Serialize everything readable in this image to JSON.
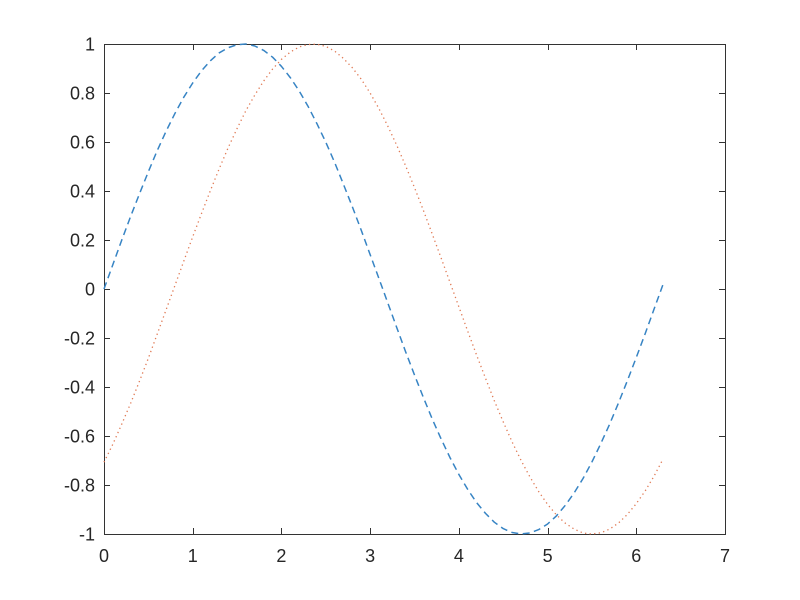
{
  "figure": {
    "background": "#ffffff"
  },
  "chart_data": {
    "type": "line",
    "title": "",
    "xlabel": "",
    "ylabel": "",
    "xlim": [
      0,
      7
    ],
    "ylim": [
      -1,
      1
    ],
    "grid": false,
    "box": true,
    "tick_direction": "in",
    "legend": null,
    "axis_color": "#333333",
    "tick_label_color": "#262626",
    "xticks": {
      "values": [
        0,
        1,
        2,
        3,
        4,
        5,
        6,
        7
      ],
      "labels": [
        "0",
        "1",
        "2",
        "3",
        "4",
        "5",
        "6",
        "7"
      ]
    },
    "yticks": {
      "values": [
        -1,
        -0.8,
        -0.6,
        -0.4,
        -0.2,
        0,
        0.2,
        0.4,
        0.6,
        0.8,
        1
      ],
      "labels": [
        "-1",
        "-0.8",
        "-0.6",
        "-0.4",
        "-0.2",
        "0",
        "0.2",
        "0.4",
        "0.6",
        "0.8",
        "1"
      ]
    },
    "x": [
      0,
      0.1,
      0.2,
      0.3,
      0.4,
      0.5,
      0.6,
      0.7,
      0.8,
      0.9,
      1,
      1.1,
      1.2,
      1.3,
      1.4,
      1.5,
      1.6,
      1.7,
      1.8,
      1.9,
      2,
      2.1,
      2.2,
      2.3,
      2.4,
      2.5,
      2.6,
      2.7,
      2.8,
      2.9,
      3,
      3.1,
      3.2,
      3.3,
      3.4,
      3.5,
      3.6,
      3.7,
      3.8,
      3.9,
      4,
      4.1,
      4.2,
      4.3,
      4.4,
      4.5,
      4.6,
      4.7,
      4.8,
      4.9,
      5,
      5.1,
      5.2,
      5.3,
      5.4,
      5.5,
      5.6,
      5.7,
      5.8,
      5.9,
      6,
      6.1,
      6.2,
      6.3
    ],
    "series": [
      {
        "name": "blue-dashed-sine",
        "line_style": "dashed",
        "color": "#3784C4",
        "values": [
          0,
          0.1,
          0.199,
          0.296,
          0.389,
          0.479,
          0.565,
          0.644,
          0.717,
          0.783,
          0.841,
          0.891,
          0.932,
          0.964,
          0.985,
          0.997,
          1,
          0.992,
          0.974,
          0.946,
          0.909,
          0.863,
          0.808,
          0.746,
          0.675,
          0.599,
          0.516,
          0.427,
          0.335,
          0.239,
          0.141,
          0.042,
          -0.058,
          -0.158,
          -0.256,
          -0.351,
          -0.443,
          -0.53,
          -0.612,
          -0.688,
          -0.757,
          -0.818,
          -0.872,
          -0.916,
          -0.952,
          -0.978,
          -0.994,
          -1,
          -0.996,
          -0.982,
          -0.959,
          -0.926,
          -0.883,
          -0.832,
          -0.773,
          -0.706,
          -0.631,
          -0.551,
          -0.465,
          -0.374,
          -0.279,
          -0.182,
          -0.083,
          0.017
        ]
      },
      {
        "name": "red-dotted-shifted-sine",
        "line_style": "dotted",
        "color": "#E07A55",
        "values": [
          -0.707,
          -0.633,
          -0.552,
          -0.467,
          -0.376,
          -0.282,
          -0.184,
          -0.085,
          0.015,
          0.114,
          0.213,
          0.309,
          0.403,
          0.492,
          0.577,
          0.655,
          0.728,
          0.792,
          0.849,
          0.898,
          0.937,
          0.967,
          0.988,
          0.998,
          0.999,
          0.99,
          0.971,
          0.941,
          0.903,
          0.856,
          0.8,
          0.736,
          0.664,
          0.586,
          0.503,
          0.414,
          0.321,
          0.225,
          0.127,
          0.027,
          -0.073,
          -0.172,
          -0.27,
          -0.364,
          -0.456,
          -0.542,
          -0.624,
          -0.699,
          -0.766,
          -0.827,
          -0.879,
          -0.922,
          -0.956,
          -0.98,
          -0.996,
          -1,
          -0.995,
          -0.98,
          -0.955,
          -0.92,
          -0.876,
          -0.824,
          -0.764,
          -0.695
        ]
      }
    ]
  }
}
